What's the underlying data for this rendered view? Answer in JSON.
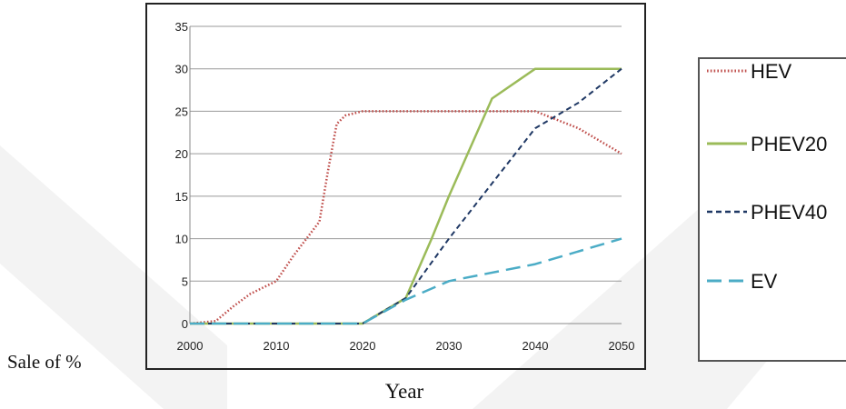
{
  "chart_data": {
    "type": "line",
    "xlabel": "Year",
    "ylabel": "Sale of %",
    "xlim": [
      2000,
      2050
    ],
    "ylim": [
      0,
      35
    ],
    "xticks": [
      2000,
      2010,
      2020,
      2030,
      2040,
      2050
    ],
    "yticks": [
      0,
      5,
      10,
      15,
      20,
      25,
      30,
      35
    ],
    "grid": "horizontal",
    "legend_position": "right",
    "series": [
      {
        "name": "HEV",
        "color": "#c0504d",
        "dash": "dotted",
        "x": [
          2000,
          2003,
          2005,
          2007,
          2010,
          2012,
          2015,
          2016,
          2017,
          2018,
          2020,
          2025,
          2030,
          2035,
          2040,
          2045,
          2050
        ],
        "y": [
          0,
          0.3,
          2,
          3.5,
          5,
          8,
          12,
          18,
          23.5,
          24.5,
          25,
          25,
          25,
          25,
          25,
          23,
          20
        ]
      },
      {
        "name": "PHEV20",
        "color": "#9bbb59",
        "dash": "solid",
        "x": [
          2000,
          2020,
          2025,
          2028,
          2030,
          2035,
          2040,
          2050
        ],
        "y": [
          0,
          0,
          3,
          10,
          15,
          26.5,
          30,
          30
        ]
      },
      {
        "name": "PHEV40",
        "color": "#1f3864",
        "dash": "dashed",
        "x": [
          2000,
          2020,
          2025,
          2030,
          2035,
          2040,
          2045,
          2050
        ],
        "y": [
          0,
          0,
          3,
          10,
          16.5,
          23,
          26,
          30
        ]
      },
      {
        "name": "EV",
        "color": "#4bacc6",
        "dash": "longdash",
        "x": [
          2000,
          2020,
          2025,
          2030,
          2040,
          2050
        ],
        "y": [
          0,
          0,
          2.8,
          5,
          7,
          10
        ]
      }
    ]
  }
}
